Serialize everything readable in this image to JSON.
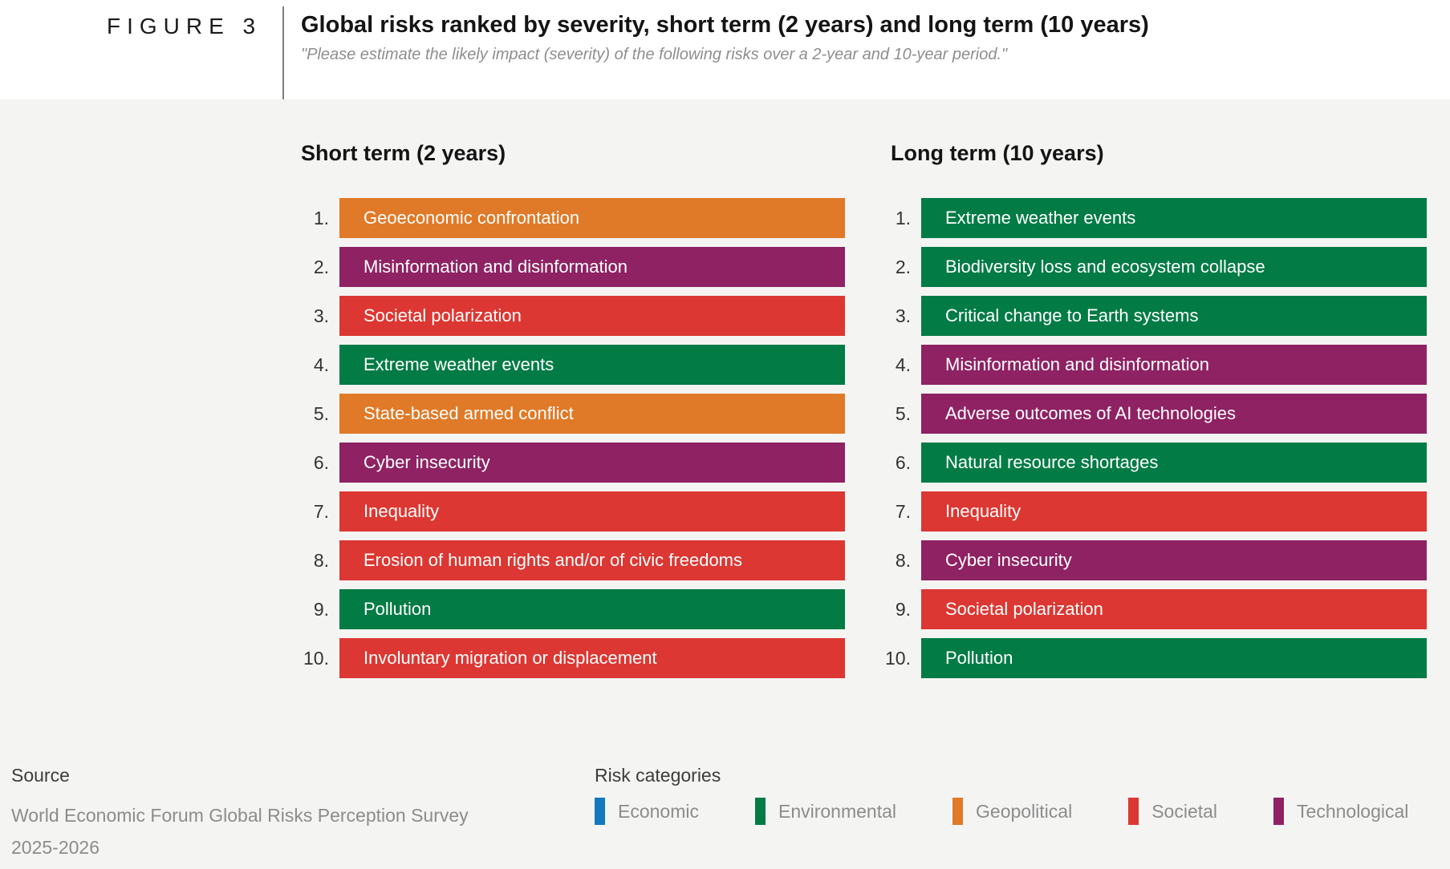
{
  "figure": {
    "label": "FIGURE 3",
    "title": "Global risks ranked by severity, short term (2 years) and long term (10 years)",
    "subtitle": "\"Please estimate the likely impact (severity) of the following risks over a 2-year and 10-year period.\""
  },
  "colors": {
    "economic": "#1378BE",
    "environmental": "#027B45",
    "geopolitical": "#E07A28",
    "societal": "#DC3732",
    "technological": "#8E2263",
    "background": "#F4F4F3",
    "header_background": "#FFFFFF"
  },
  "columns": [
    {
      "heading": "Short term (2 years)",
      "items": [
        {
          "rank": "1.",
          "label": "Geoeconomic confrontation",
          "category": "Geopolitical",
          "color": "#E07A28"
        },
        {
          "rank": "2.",
          "label": "Misinformation and disinformation",
          "category": "Technological",
          "color": "#8E2263"
        },
        {
          "rank": "3.",
          "label": "Societal polarization",
          "category": "Societal",
          "color": "#DC3732"
        },
        {
          "rank": "4.",
          "label": "Extreme weather events",
          "category": "Environmental",
          "color": "#027B45"
        },
        {
          "rank": "5.",
          "label": "State-based armed conflict",
          "category": "Geopolitical",
          "color": "#E07A28"
        },
        {
          "rank": "6.",
          "label": "Cyber insecurity",
          "category": "Technological",
          "color": "#8E2263"
        },
        {
          "rank": "7.",
          "label": "Inequality",
          "category": "Societal",
          "color": "#DC3732"
        },
        {
          "rank": "8.",
          "label": "Erosion of human rights and/or of civic freedoms",
          "category": "Societal",
          "color": "#DC3732"
        },
        {
          "rank": "9.",
          "label": "Pollution",
          "category": "Environmental",
          "color": "#027B45"
        },
        {
          "rank": "10.",
          "label": "Involuntary migration or displacement",
          "category": "Societal",
          "color": "#DC3732"
        }
      ]
    },
    {
      "heading": "Long term (10 years)",
      "items": [
        {
          "rank": "1.",
          "label": "Extreme weather events",
          "category": "Environmental",
          "color": "#027B45"
        },
        {
          "rank": "2.",
          "label": "Biodiversity loss and ecosystem collapse",
          "category": "Environmental",
          "color": "#027B45"
        },
        {
          "rank": "3.",
          "label": "Critical change to Earth systems",
          "category": "Environmental",
          "color": "#027B45"
        },
        {
          "rank": "4.",
          "label": "Misinformation and disinformation",
          "category": "Technological",
          "color": "#8E2263"
        },
        {
          "rank": "5.",
          "label": "Adverse outcomes of AI technologies",
          "category": "Technological",
          "color": "#8E2263"
        },
        {
          "rank": "6.",
          "label": "Natural resource shortages",
          "category": "Environmental",
          "color": "#027B45"
        },
        {
          "rank": "7.",
          "label": "Inequality",
          "category": "Societal",
          "color": "#DC3732"
        },
        {
          "rank": "8.",
          "label": "Cyber insecurity",
          "category": "Technological",
          "color": "#8E2263"
        },
        {
          "rank": "9.",
          "label": "Societal polarization",
          "category": "Societal",
          "color": "#DC3732"
        },
        {
          "rank": "10.",
          "label": "Pollution",
          "category": "Environmental",
          "color": "#027B45"
        }
      ]
    }
  ],
  "legend": {
    "title": "Risk categories",
    "items": [
      {
        "label": "Economic",
        "color": "#1378BE"
      },
      {
        "label": "Environmental",
        "color": "#027B45"
      },
      {
        "label": "Geopolitical",
        "color": "#E07A28"
      },
      {
        "label": "Societal",
        "color": "#DC3732"
      },
      {
        "label": "Technological",
        "color": "#8E2263"
      }
    ]
  },
  "source": {
    "label": "Source",
    "line1": "World Economic Forum Global Risks Perception Survey",
    "line2": "2025-2026"
  },
  "chart_data": {
    "type": "table",
    "title": "Global risks ranked by severity, short term (2 years) and long term (10 years)",
    "subtitle": "\"Please estimate the likely impact (severity) of the following risks over a 2-year and 10-year period.\"",
    "columns": [
      "Short term (2 years)",
      "Long term (10 years)"
    ],
    "rankings": {
      "short_term_2_years": [
        {
          "rank": 1,
          "risk": "Geoeconomic confrontation",
          "category": "Geopolitical"
        },
        {
          "rank": 2,
          "risk": "Misinformation and disinformation",
          "category": "Technological"
        },
        {
          "rank": 3,
          "risk": "Societal polarization",
          "category": "Societal"
        },
        {
          "rank": 4,
          "risk": "Extreme weather events",
          "category": "Environmental"
        },
        {
          "rank": 5,
          "risk": "State-based armed conflict",
          "category": "Geopolitical"
        },
        {
          "rank": 6,
          "risk": "Cyber insecurity",
          "category": "Technological"
        },
        {
          "rank": 7,
          "risk": "Inequality",
          "category": "Societal"
        },
        {
          "rank": 8,
          "risk": "Erosion of human rights and/or of civic freedoms",
          "category": "Societal"
        },
        {
          "rank": 9,
          "risk": "Pollution",
          "category": "Environmental"
        },
        {
          "rank": 10,
          "risk": "Involuntary migration or displacement",
          "category": "Societal"
        }
      ],
      "long_term_10_years": [
        {
          "rank": 1,
          "risk": "Extreme weather events",
          "category": "Environmental"
        },
        {
          "rank": 2,
          "risk": "Biodiversity loss and ecosystem collapse",
          "category": "Environmental"
        },
        {
          "rank": 3,
          "risk": "Critical change to Earth systems",
          "category": "Environmental"
        },
        {
          "rank": 4,
          "risk": "Misinformation and disinformation",
          "category": "Technological"
        },
        {
          "rank": 5,
          "risk": "Adverse outcomes of AI technologies",
          "category": "Technological"
        },
        {
          "rank": 6,
          "risk": "Natural resource shortages",
          "category": "Environmental"
        },
        {
          "rank": 7,
          "risk": "Inequality",
          "category": "Societal"
        },
        {
          "rank": 8,
          "risk": "Cyber insecurity",
          "category": "Technological"
        },
        {
          "rank": 9,
          "risk": "Societal polarization",
          "category": "Societal"
        },
        {
          "rank": 10,
          "risk": "Pollution",
          "category": "Environmental"
        }
      ]
    },
    "categories": {
      "Economic": "#1378BE",
      "Environmental": "#027B45",
      "Geopolitical": "#E07A28",
      "Societal": "#DC3732",
      "Technological": "#8E2263"
    },
    "legend_position": "bottom",
    "source": "World Economic Forum Global Risks Perception Survey 2025-2026"
  }
}
